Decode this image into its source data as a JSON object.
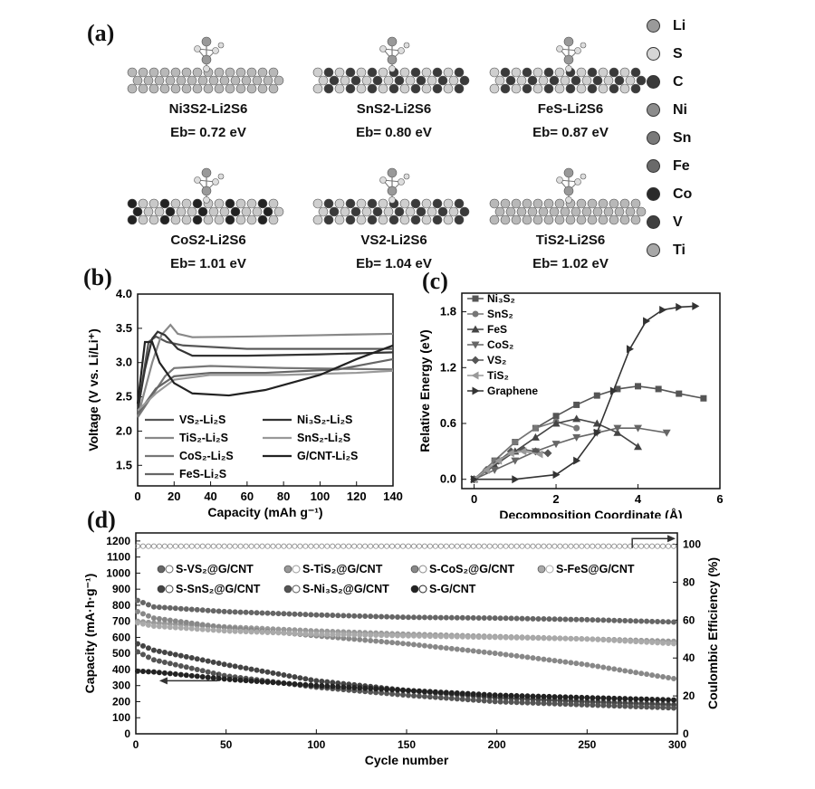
{
  "panel_a": {
    "label": "(a)",
    "structures": [
      {
        "name": "Ni3S2-Li2S6",
        "eb": "Eb= 0.72 eV",
        "theme": "gray"
      },
      {
        "name": "SnS2-Li2S6",
        "eb": "Eb= 0.80 eV",
        "theme": "dark"
      },
      {
        "name": "FeS-Li2S6",
        "eb": "Eb= 0.87 eV",
        "theme": "dark"
      },
      {
        "name": "CoS2-Li2S6",
        "eb": "Eb= 1.01 eV",
        "theme": "mixed"
      },
      {
        "name": "VS2-Li2S6",
        "eb": "Eb= 1.04 eV",
        "theme": "dark"
      },
      {
        "name": "TiS2-Li2S6",
        "eb": "Eb= 1.02 eV",
        "theme": "gray"
      }
    ],
    "element_legend": [
      {
        "symbol": "Li",
        "color": "#9a9a9a"
      },
      {
        "symbol": "S",
        "color": "#d6d6d6"
      },
      {
        "symbol": "C",
        "color": "#3a3a3a"
      },
      {
        "symbol": "Ni",
        "color": "#8c8c8c"
      },
      {
        "symbol": "Sn",
        "color": "#7a7a7a"
      },
      {
        "symbol": "Fe",
        "color": "#6a6a6a"
      },
      {
        "symbol": "Co",
        "color": "#2a2a2a"
      },
      {
        "symbol": "V",
        "color": "#404040"
      },
      {
        "symbol": "Ti",
        "color": "#a8a8a8"
      }
    ]
  },
  "chart_data": [
    {
      "panel": "(b)",
      "type": "line",
      "xlabel": "Capacity (mAh g⁻¹)",
      "ylabel": "Voltage (V vs. Li/Li⁺)",
      "xlim": [
        0,
        140
      ],
      "ylim": [
        1.2,
        4.0
      ],
      "xticks": [
        0,
        20,
        40,
        60,
        80,
        100,
        120,
        140
      ],
      "yticks": [
        1.5,
        2.0,
        2.5,
        3.0,
        3.5,
        4.0
      ],
      "legend": [
        "VS₂-Li₂S",
        "TiS₂-Li₂S",
        "CoS₂-Li₂S",
        "FeS-Li₂S",
        "Ni₃S₂-Li₂S",
        "SnS₂-Li₂S",
        "G/CNT-Li₂S"
      ],
      "series": [
        {
          "name": "VS₂-Li₂S",
          "color": "#555555",
          "x": [
            0,
            3,
            6,
            10,
            16,
            25,
            60,
            140
          ],
          "y": [
            2.25,
            2.8,
            3.3,
            3.38,
            3.3,
            3.25,
            3.2,
            3.2
          ]
        },
        {
          "name": "TiS₂-Li₂S",
          "color": "#888888",
          "x": [
            0,
            4,
            8,
            13,
            18,
            22,
            30,
            60,
            100,
            140
          ],
          "y": [
            2.2,
            2.6,
            3.0,
            3.4,
            3.55,
            3.42,
            3.37,
            3.38,
            3.4,
            3.42
          ]
        },
        {
          "name": "CoS₂-Li₂S",
          "color": "#777777",
          "x": [
            0,
            5,
            10,
            15,
            20,
            40,
            80,
            140
          ],
          "y": [
            2.2,
            2.4,
            2.6,
            2.8,
            2.92,
            2.95,
            2.92,
            2.9
          ]
        },
        {
          "name": "FeS-Li₂S",
          "color": "#666666",
          "x": [
            0,
            10,
            20,
            40,
            70,
            110,
            140
          ],
          "y": [
            2.25,
            2.62,
            2.8,
            2.85,
            2.85,
            2.9,
            3.05
          ]
        },
        {
          "name": "Ni₃S₂-Li₂S",
          "color": "#333333",
          "x": [
            0,
            4,
            8,
            11,
            15,
            22,
            30,
            60,
            100,
            140
          ],
          "y": [
            2.3,
            2.9,
            3.35,
            3.45,
            3.4,
            3.2,
            3.1,
            3.1,
            3.12,
            3.15
          ]
        },
        {
          "name": "SnS₂-Li₂S",
          "color": "#999999",
          "x": [
            0,
            10,
            20,
            40,
            80,
            120,
            140
          ],
          "y": [
            2.3,
            2.55,
            2.75,
            2.82,
            2.82,
            2.85,
            2.88
          ]
        },
        {
          "name": "G/CNT-Li₂S",
          "color": "#222222",
          "x": [
            0,
            4,
            8,
            12,
            20,
            30,
            50,
            70,
            100,
            120,
            140
          ],
          "y": [
            2.4,
            3.3,
            3.3,
            3.0,
            2.7,
            2.55,
            2.52,
            2.6,
            2.82,
            3.05,
            3.25
          ]
        }
      ]
    },
    {
      "panel": "(c)",
      "type": "line",
      "xlabel": "Decomposition Coordinate (Å)",
      "ylabel": "Relative Energy (eV)",
      "xlim": [
        -0.3,
        6
      ],
      "ylim": [
        -0.1,
        2.0
      ],
      "xticks": [
        0,
        2,
        4,
        6
      ],
      "yticks": [
        0.0,
        0.6,
        1.2,
        1.8
      ],
      "legend": [
        "Ni₃S₂",
        "SnS₂",
        "FeS",
        "CoS₂",
        "VS₂",
        "TiS₂",
        "Graphene"
      ],
      "series": [
        {
          "name": "Ni₃S₂",
          "color": "#555555",
          "marker": "square",
          "x": [
            0,
            0.5,
            1.0,
            1.5,
            2.0,
            2.5,
            3.0,
            3.5,
            4.0,
            4.5,
            5.0,
            5.6
          ],
          "y": [
            0,
            0.2,
            0.4,
            0.55,
            0.68,
            0.8,
            0.9,
            0.97,
            1.0,
            0.97,
            0.92,
            0.87
          ]
        },
        {
          "name": "SnS₂",
          "color": "#777777",
          "marker": "circle",
          "x": [
            0,
            0.5,
            1.0,
            1.5,
            2.0,
            2.5
          ],
          "y": [
            0,
            0.2,
            0.4,
            0.55,
            0.62,
            0.55
          ]
        },
        {
          "name": "FeS",
          "color": "#444444",
          "marker": "triangle-up",
          "x": [
            0,
            0.5,
            1.0,
            1.5,
            2.0,
            2.5,
            3.0,
            3.5,
            4.0
          ],
          "y": [
            0,
            0.15,
            0.3,
            0.45,
            0.6,
            0.65,
            0.6,
            0.5,
            0.35
          ]
        },
        {
          "name": "CoS₂",
          "color": "#666666",
          "marker": "triangle-down",
          "x": [
            0,
            0.5,
            1.0,
            1.5,
            2.0,
            2.5,
            3.0,
            3.5,
            4.0,
            4.7
          ],
          "y": [
            0,
            0.1,
            0.2,
            0.3,
            0.38,
            0.45,
            0.5,
            0.55,
            0.55,
            0.5
          ]
        },
        {
          "name": "VS₂",
          "color": "#555555",
          "marker": "diamond",
          "x": [
            0,
            0.3,
            0.6,
            0.9,
            1.2,
            1.5,
            1.8
          ],
          "y": [
            0,
            0.1,
            0.2,
            0.3,
            0.32,
            0.3,
            0.28
          ]
        },
        {
          "name": "TiS₂",
          "color": "#999999",
          "marker": "triangle-left",
          "x": [
            0,
            0.3,
            0.6,
            0.9,
            1.2,
            1.6
          ],
          "y": [
            0,
            0.1,
            0.2,
            0.28,
            0.3,
            0.27
          ]
        },
        {
          "name": "Graphene",
          "color": "#333333",
          "marker": "triangle-right",
          "x": [
            0,
            1.0,
            2.0,
            2.5,
            3.0,
            3.4,
            3.8,
            4.2,
            4.6,
            5.0,
            5.4
          ],
          "y": [
            0,
            0.0,
            0.05,
            0.2,
            0.5,
            0.95,
            1.4,
            1.7,
            1.82,
            1.85,
            1.86
          ]
        }
      ]
    },
    {
      "panel": "(d)",
      "type": "scatter",
      "xlabel": "Cycle number",
      "ylabel": "Capacity (mA·h·g⁻¹)",
      "y2label": "Coulombic Efficiency (%)",
      "xlim": [
        0,
        300
      ],
      "ylim": [
        0,
        1250
      ],
      "y2lim": [
        0,
        106
      ],
      "xticks": [
        0,
        50,
        100,
        150,
        200,
        250,
        300
      ],
      "yticks": [
        0,
        100,
        200,
        300,
        400,
        500,
        600,
        700,
        800,
        900,
        1000,
        1100,
        1200
      ],
      "y2ticks": [
        0,
        20,
        40,
        60,
        80,
        100
      ],
      "legend": [
        "S-VS₂@G/CNT",
        "S-TiS₂@G/CNT",
        "S-CoS₂@G/CNT",
        "S-FeS@G/CNT",
        "S-SnS₂@G/CNT",
        "S-Ni₃S₂@G/CNT",
        "S-G/CNT"
      ],
      "series": [
        {
          "name": "S-VS₂@G/CNT",
          "color": "#666666",
          "x": [
            1,
            10,
            50,
            100,
            150,
            200,
            250,
            300
          ],
          "y": [
            830,
            790,
            760,
            740,
            725,
            720,
            710,
            695
          ]
        },
        {
          "name": "S-TiS₂@G/CNT",
          "color": "#999999",
          "x": [
            1,
            10,
            50,
            100,
            150,
            200,
            250,
            300
          ],
          "y": [
            700,
            690,
            665,
            640,
            620,
            605,
            590,
            575
          ]
        },
        {
          "name": "S-CoS₂@G/CNT",
          "color": "#888888",
          "x": [
            1,
            10,
            50,
            100,
            150,
            200,
            250,
            300
          ],
          "y": [
            760,
            720,
            660,
            610,
            560,
            500,
            430,
            340
          ]
        },
        {
          "name": "S-FeS@G/CNT",
          "color": "#aaaaaa",
          "x": [
            1,
            10,
            50,
            100,
            150,
            200,
            250,
            300
          ],
          "y": [
            690,
            670,
            640,
            620,
            610,
            600,
            590,
            560
          ]
        },
        {
          "name": "S-SnS₂@G/CNT",
          "color": "#444444",
          "x": [
            1,
            10,
            50,
            100,
            150,
            200,
            250,
            300
          ],
          "y": [
            560,
            520,
            430,
            330,
            270,
            225,
            200,
            180
          ]
        },
        {
          "name": "S-Ni₃S₂@G/CNT",
          "color": "#555555",
          "x": [
            1,
            10,
            50,
            100,
            150,
            200,
            250,
            300
          ],
          "y": [
            510,
            460,
            360,
            290,
            240,
            200,
            180,
            160
          ]
        },
        {
          "name": "S-G/CNT",
          "color": "#222222",
          "x": [
            1,
            10,
            50,
            100,
            150,
            200,
            250,
            300
          ],
          "y": [
            390,
            385,
            340,
            300,
            270,
            240,
            225,
            210
          ]
        },
        {
          "name": "Coulombic Efficiency",
          "axis": "y2",
          "color": "#888888",
          "x": [
            1,
            50,
            100,
            150,
            200,
            250,
            300
          ],
          "y": [
            99,
            99,
            99,
            99,
            99,
            99,
            99
          ]
        }
      ]
    }
  ]
}
